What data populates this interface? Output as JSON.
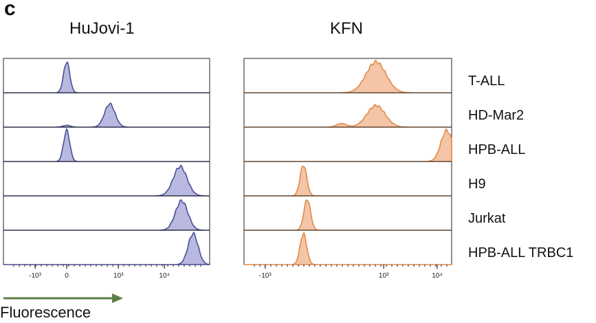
{
  "panel_label": "c",
  "xlabel": "Fluorescence",
  "colors": {
    "left": "#4b4f95",
    "left_fill": "#b8b8e0",
    "right": "#e08a4a",
    "right_fill": "#f4c5a6",
    "arrow": "#5c7e48"
  },
  "chart_data": [
    {
      "type": "histogram-overlay",
      "title": "HuJovi-1",
      "categories": [
        "T-ALL",
        "HD-Mar2",
        "HPB-ALL",
        "H9",
        "Jurkat",
        "HPB-ALL TRBC1"
      ],
      "xticks": [
        "-10³",
        "0",
        "10³",
        "10⁴"
      ],
      "series": [
        {
          "peaks": [
            {
              "pos": 0.0,
              "w": 0.25,
              "h": 1.0
            }
          ]
        },
        {
          "peaks": [
            {
              "pos": 1.5,
              "w": 0.42,
              "h": 0.75
            },
            {
              "pos": 0.0,
              "w": 0.3,
              "h": 0.06
            }
          ]
        },
        {
          "peaks": [
            {
              "pos": 0.0,
              "w": 0.25,
              "h": 1.0
            }
          ]
        },
        {
          "peaks": [
            {
              "pos": 3.95,
              "w": 0.55,
              "h": 0.95
            }
          ]
        },
        {
          "peaks": [
            {
              "pos": 4.0,
              "w": 0.5,
              "h": 0.95
            }
          ]
        },
        {
          "peaks": [
            {
              "pos": 4.4,
              "w": 0.4,
              "h": 1.0
            }
          ]
        }
      ]
    },
    {
      "type": "histogram-overlay",
      "title": "KFN",
      "categories": [
        "T-ALL",
        "HD-Mar2",
        "HPB-ALL",
        "H9",
        "Jurkat",
        "HPB-ALL TRBC1"
      ],
      "xticks": [
        "-10³",
        "10³",
        "10⁴"
      ],
      "series": [
        {
          "peaks": [
            {
              "pos": 2.5,
              "w": 0.6,
              "h": 1.0
            }
          ]
        },
        {
          "peaks": [
            {
              "pos": 2.5,
              "w": 0.55,
              "h": 0.7
            },
            {
              "pos": 1.6,
              "w": 0.3,
              "h": 0.12
            }
          ]
        },
        {
          "peaks": [
            {
              "pos": 4.35,
              "w": 0.35,
              "h": 1.0
            }
          ]
        },
        {
          "peaks": [
            {
              "pos": 0.6,
              "w": 0.2,
              "h": 1.0
            }
          ]
        },
        {
          "peaks": [
            {
              "pos": 0.7,
              "w": 0.2,
              "h": 1.0
            }
          ]
        },
        {
          "peaks": [
            {
              "pos": 0.6,
              "w": 0.2,
              "h": 1.0
            }
          ]
        }
      ]
    }
  ]
}
